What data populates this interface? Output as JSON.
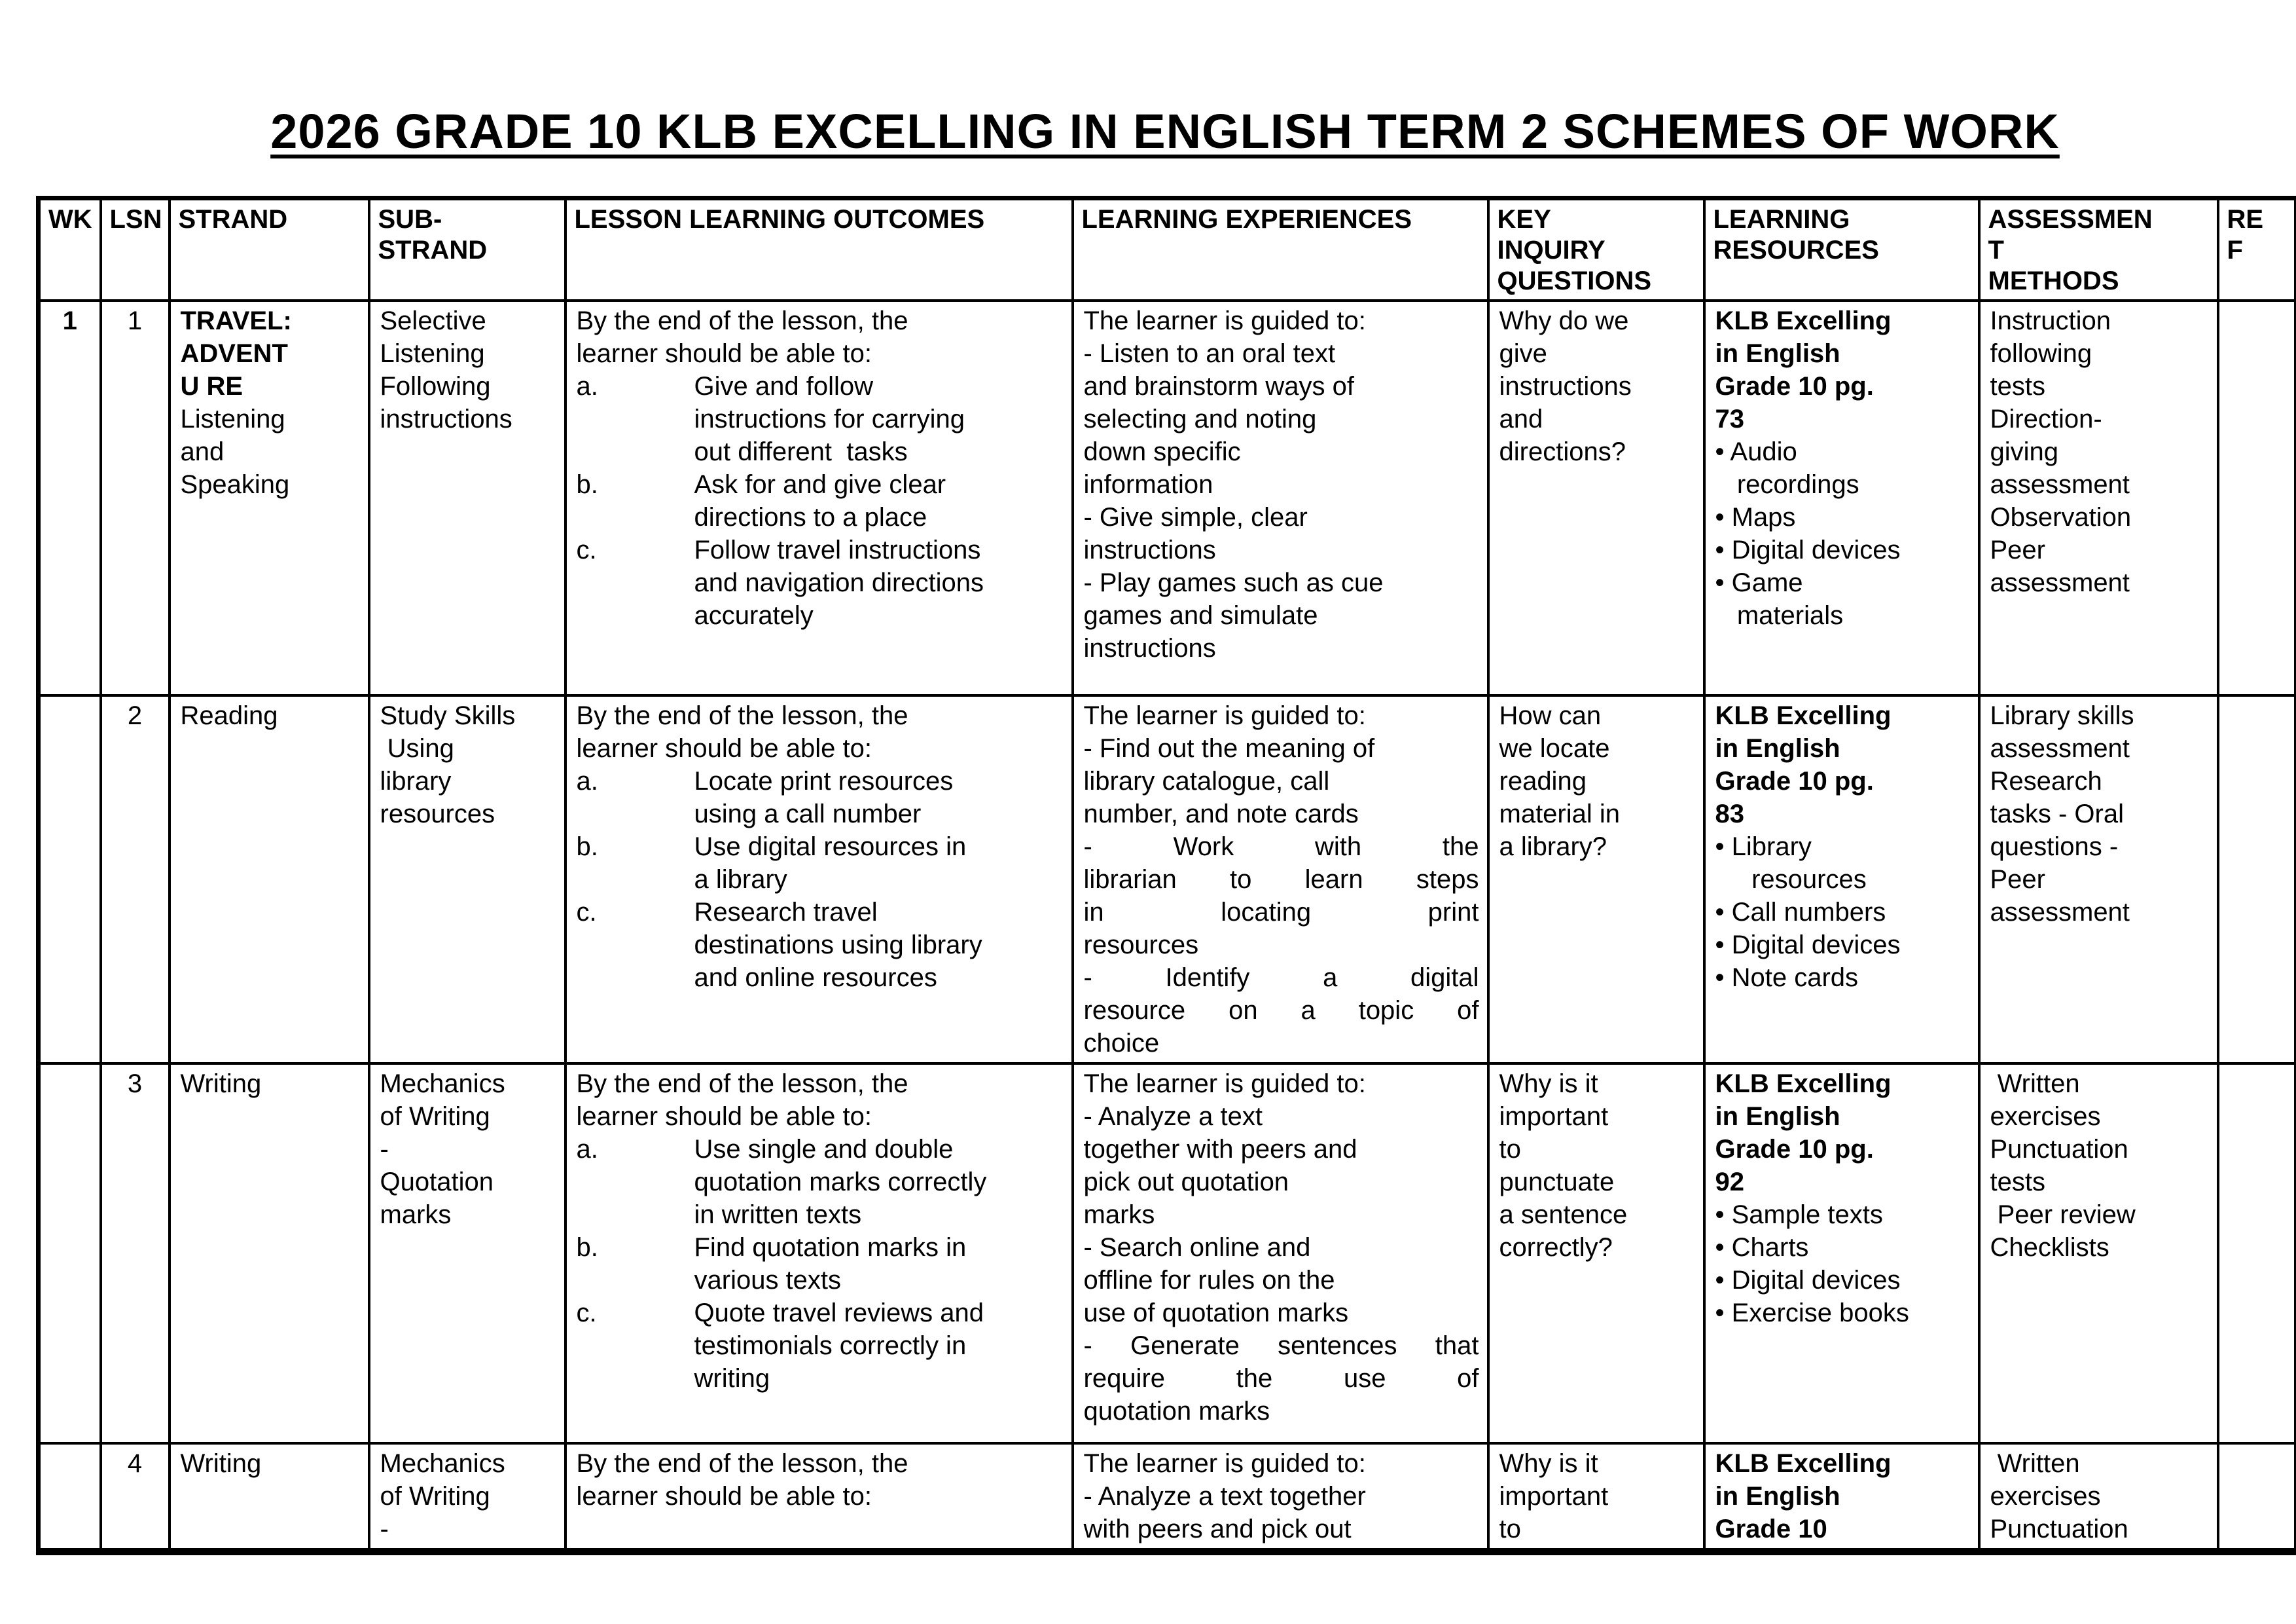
{
  "title": "2026 GRADE 10 KLB EXCELLING IN ENGLISH TERM 2 SCHEMES OF WORK",
  "table": {
    "headers": {
      "wk": "WK",
      "lsn": "LSN",
      "strand": "STRAND",
      "substrand": "SUB-\nSTRAND",
      "outcomes": "LESSON LEARNING OUTCOMES",
      "experiences": "LEARNING EXPERIENCES",
      "key_inquiry": "KEY\nINQUIRY\nQUESTIONS",
      "resources": "LEARNING\nRESOURCES",
      "assessment": "ASSESSMEN\nT\nMETHODS",
      "ref": "RE\nF"
    },
    "rows": [
      {
        "wk": "1",
        "lsn": "1",
        "strand_bold": "TRAVEL:\nADVENT\nU RE",
        "strand_rest": "Listening\nand\nSpeaking",
        "substrand": "Selective\nListening\nFollowing\ninstructions",
        "outcomes_intro": "By the end of the lesson, the\nlearner should be able to:",
        "outcomes": [
          {
            "m": "a.",
            "t": "Give and follow\ninstructions for carrying\nout different  tasks"
          },
          {
            "m": "b.",
            "t": "Ask for and give clear\ndirections to a place"
          },
          {
            "m": "c.",
            "t": "Follow travel instructions\nand navigation directions\naccurately"
          }
        ],
        "exp_intro": "The learner is guided to:",
        "exp": [
          "- Listen to an oral text\nand brainstorm ways of\nselecting and noting\ndown specific\ninformation",
          "- Give simple, clear\ninstructions",
          "- Play games such as cue\ngames and simulate\ninstructions"
        ],
        "key_inquiry": "Why do we\ngive\ninstructions\nand\ndirections?",
        "resources_title": "KLB Excelling\nin English\nGrade 10 pg.\n73",
        "resources_items": "• Audio\n   recordings\n• Maps\n• Digital devices\n• Game\n   materials",
        "assessment": "Instruction\nfollowing\ntests\nDirection-\ngiving\nassessment\nObservation\nPeer\nassessment",
        "ref": ""
      },
      {
        "wk": "",
        "lsn": "2",
        "strand_bold": "",
        "strand_rest": "Reading",
        "substrand": "Study Skills\n Using\nlibrary\nresources",
        "outcomes_intro": "By the end of the lesson, the\nlearner should be able to:",
        "outcomes": [
          {
            "m": "a.",
            "t": "Locate print resources\nusing a call number"
          },
          {
            "m": "b.",
            "t": "Use digital resources in\na library"
          },
          {
            "m": "c.",
            "t": "Research travel\ndestinations using library\nand online resources"
          }
        ],
        "exp_intro": "The learner is guided to:",
        "exp": [
          "- Find out the meaning of\nlibrary catalogue, call\nnumber, and note cards",
          "- Work with the\nlibrarian to learn steps\nin locating print\nresources",
          "- Identify a digital\nresource on a topic of\nchoice"
        ],
        "key_inquiry": "How can\nwe locate\nreading\nmaterial in\na library?",
        "resources_title": "KLB Excelling\nin English\nGrade 10 pg.\n83",
        "resources_items": "• Library\n     resources\n• Call numbers\n• Digital devices\n• Note cards",
        "assessment": "Library skills\nassessment\nResearch\ntasks - Oral\nquestions -\nPeer\nassessment",
        "ref": ""
      },
      {
        "wk": "",
        "lsn": "3",
        "strand_bold": "",
        "strand_rest": "Writing",
        "substrand": "Mechanics\nof Writing\n-\nQuotation\nmarks",
        "outcomes_intro": "By the end of the lesson, the\nlearner should be able to:",
        "outcomes": [
          {
            "m": "a.",
            "t": "Use single and double\nquotation marks correctly\nin written texts"
          },
          {
            "m": "b.",
            "t": "Find quotation marks in\nvarious texts"
          },
          {
            "m": "c.",
            "t": "Quote travel reviews and\ntestimonials correctly in\nwriting"
          }
        ],
        "exp_intro": "The learner is guided to:",
        "exp": [
          "- Analyze a text\ntogether with peers and\npick out quotation\nmarks",
          "- Search online and\noffline for rules on the\nuse of quotation marks",
          "- Generate sentences that\nrequire the use of\nquotation marks"
        ],
        "key_inquiry": "Why is it\nimportant\nto\npunctuate\na sentence\ncorrectly?",
        "resources_title": "KLB Excelling\nin English\nGrade 10 pg.\n92",
        "resources_items": "• Sample texts\n• Charts\n• Digital devices\n• Exercise books",
        "assessment": " Written\nexercises\nPunctuation\ntests\n Peer review\nChecklists",
        "ref": ""
      },
      {
        "wk": "",
        "lsn": "4",
        "strand_bold": "",
        "strand_rest": "Writing",
        "substrand": "Mechanics\nof Writing\n-",
        "outcomes_intro": "By the end of the lesson, the\nlearner should be able to:",
        "outcomes": [],
        "exp_intro": "The learner is guided to:",
        "exp": [
          "- Analyze a text together\nwith peers and pick out"
        ],
        "key_inquiry": "Why is it\nimportant\nto",
        "resources_title": "KLB Excelling\nin English\nGrade 10",
        "resources_items": "",
        "assessment": " Written\nexercises\nPunctuation",
        "ref": ""
      }
    ]
  }
}
